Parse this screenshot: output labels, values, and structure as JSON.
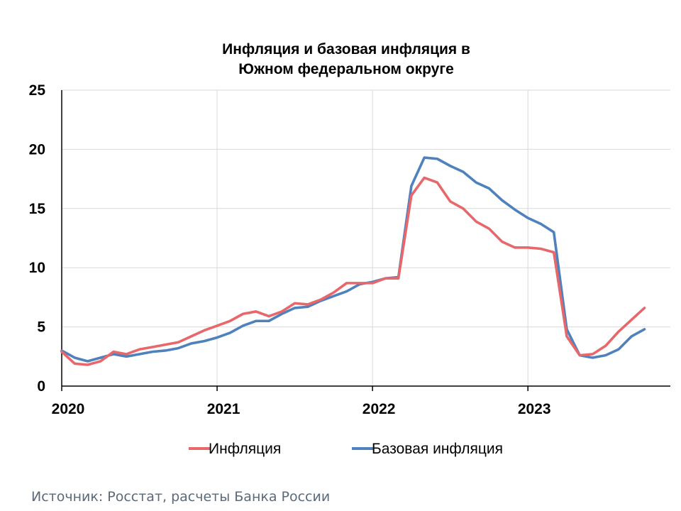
{
  "chart_data": {
    "type": "line",
    "title_lines": [
      "Инфляция и базовая инфляция в",
      "Южном федеральном округе"
    ],
    "xlabel": "",
    "ylabel": "",
    "ylim": [
      0,
      25
    ],
    "yticks": [
      0,
      5,
      10,
      15,
      20,
      25
    ],
    "xlim": [
      "2020-01",
      "2023-10"
    ],
    "xtick_labels": [
      "2020",
      "2021",
      "2022",
      "2023"
    ],
    "grid": true,
    "legend_position": "bottom",
    "series": [
      {
        "name": "Инфляция",
        "color": "#e8676b",
        "x": [
          "2020-01",
          "2020-02",
          "2020-03",
          "2020-04",
          "2020-05",
          "2020-06",
          "2020-07",
          "2020-08",
          "2020-09",
          "2020-10",
          "2020-11",
          "2020-12",
          "2021-01",
          "2021-02",
          "2021-03",
          "2021-04",
          "2021-05",
          "2021-06",
          "2021-07",
          "2021-08",
          "2021-09",
          "2021-10",
          "2021-11",
          "2021-12",
          "2022-01",
          "2022-02",
          "2022-03",
          "2022-04",
          "2022-05",
          "2022-06",
          "2022-07",
          "2022-08",
          "2022-09",
          "2022-10",
          "2022-11",
          "2022-12",
          "2023-01",
          "2023-02",
          "2023-03",
          "2023-04",
          "2023-05",
          "2023-06",
          "2023-07",
          "2023-08",
          "2023-09",
          "2023-10"
        ],
        "values": [
          2.9,
          1.9,
          1.8,
          2.1,
          2.9,
          2.7,
          3.1,
          3.3,
          3.5,
          3.7,
          4.2,
          4.7,
          5.1,
          5.5,
          6.1,
          6.3,
          5.9,
          6.3,
          7.0,
          6.9,
          7.3,
          7.9,
          8.7,
          8.7,
          8.7,
          9.1,
          9.1,
          16.1,
          17.6,
          17.2,
          15.6,
          15.0,
          13.9,
          13.3,
          12.2,
          11.7,
          11.7,
          11.6,
          11.3,
          4.2,
          2.6,
          2.7,
          3.4,
          4.6,
          5.6,
          6.6
        ]
      },
      {
        "name": "Базовая инфляция",
        "color": "#4f81bd",
        "x": [
          "2020-01",
          "2020-02",
          "2020-03",
          "2020-04",
          "2020-05",
          "2020-06",
          "2020-07",
          "2020-08",
          "2020-09",
          "2020-10",
          "2020-11",
          "2020-12",
          "2021-01",
          "2021-02",
          "2021-03",
          "2021-04",
          "2021-05",
          "2021-06",
          "2021-07",
          "2021-08",
          "2021-09",
          "2021-10",
          "2021-11",
          "2021-12",
          "2022-01",
          "2022-02",
          "2022-03",
          "2022-04",
          "2022-05",
          "2022-06",
          "2022-07",
          "2022-08",
          "2022-09",
          "2022-10",
          "2022-11",
          "2022-12",
          "2023-01",
          "2023-02",
          "2023-03",
          "2023-04",
          "2023-05",
          "2023-06",
          "2023-07",
          "2023-08",
          "2023-09",
          "2023-10"
        ],
        "values": [
          3.0,
          2.4,
          2.1,
          2.4,
          2.7,
          2.5,
          2.7,
          2.9,
          3.0,
          3.2,
          3.6,
          3.8,
          4.1,
          4.5,
          5.1,
          5.5,
          5.5,
          6.1,
          6.6,
          6.7,
          7.2,
          7.6,
          8.0,
          8.6,
          8.8,
          9.1,
          9.2,
          16.9,
          19.3,
          19.2,
          18.6,
          18.1,
          17.2,
          16.7,
          15.7,
          14.9,
          14.2,
          13.7,
          13.0,
          4.8,
          2.6,
          2.4,
          2.6,
          3.1,
          4.2,
          4.8
        ]
      }
    ],
    "source": "Источник: Росстат, расчеты Банка России"
  }
}
